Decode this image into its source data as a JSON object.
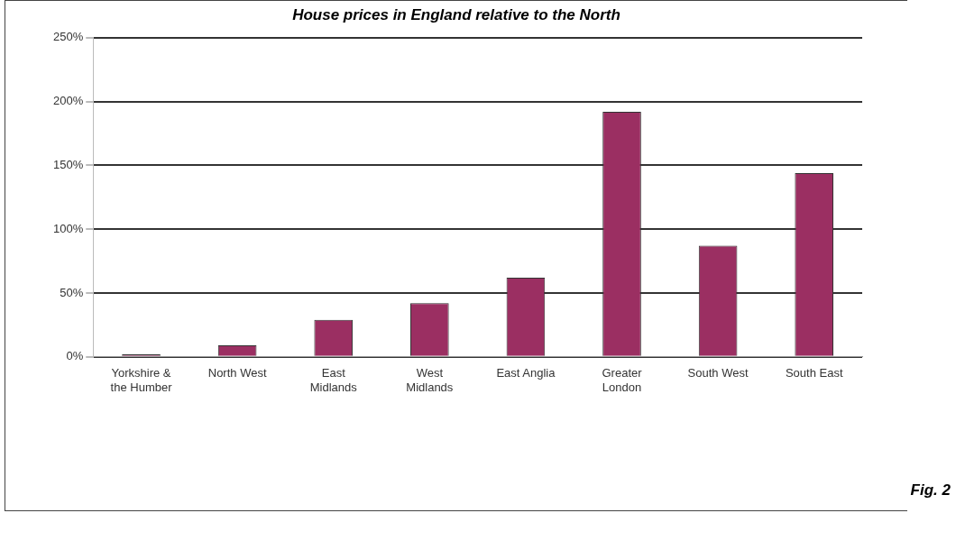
{
  "chart_data": {
    "type": "bar",
    "title": "House prices in England relative to the North",
    "categories": [
      [
        "Yorkshire &",
        "the Humber"
      ],
      "North West",
      [
        "East",
        "Midlands"
      ],
      [
        "West",
        "Midlands"
      ],
      "East Anglia",
      [
        "Greater",
        "London"
      ],
      "South West",
      "South East"
    ],
    "values": [
      2,
      9,
      29,
      42,
      62,
      192,
      87,
      144
    ],
    "color": "#9b2f62",
    "ylim": [
      0,
      250
    ],
    "yticks": [
      {
        "value": 0,
        "label": "0%"
      },
      {
        "value": 50,
        "label": "50%"
      },
      {
        "value": 100,
        "label": "100%"
      },
      {
        "value": 150,
        "label": "150%"
      },
      {
        "value": 200,
        "label": "200%"
      },
      {
        "value": 250,
        "label": "250%"
      }
    ],
    "grid": "y",
    "annotations": [
      "Fig. 2"
    ]
  }
}
